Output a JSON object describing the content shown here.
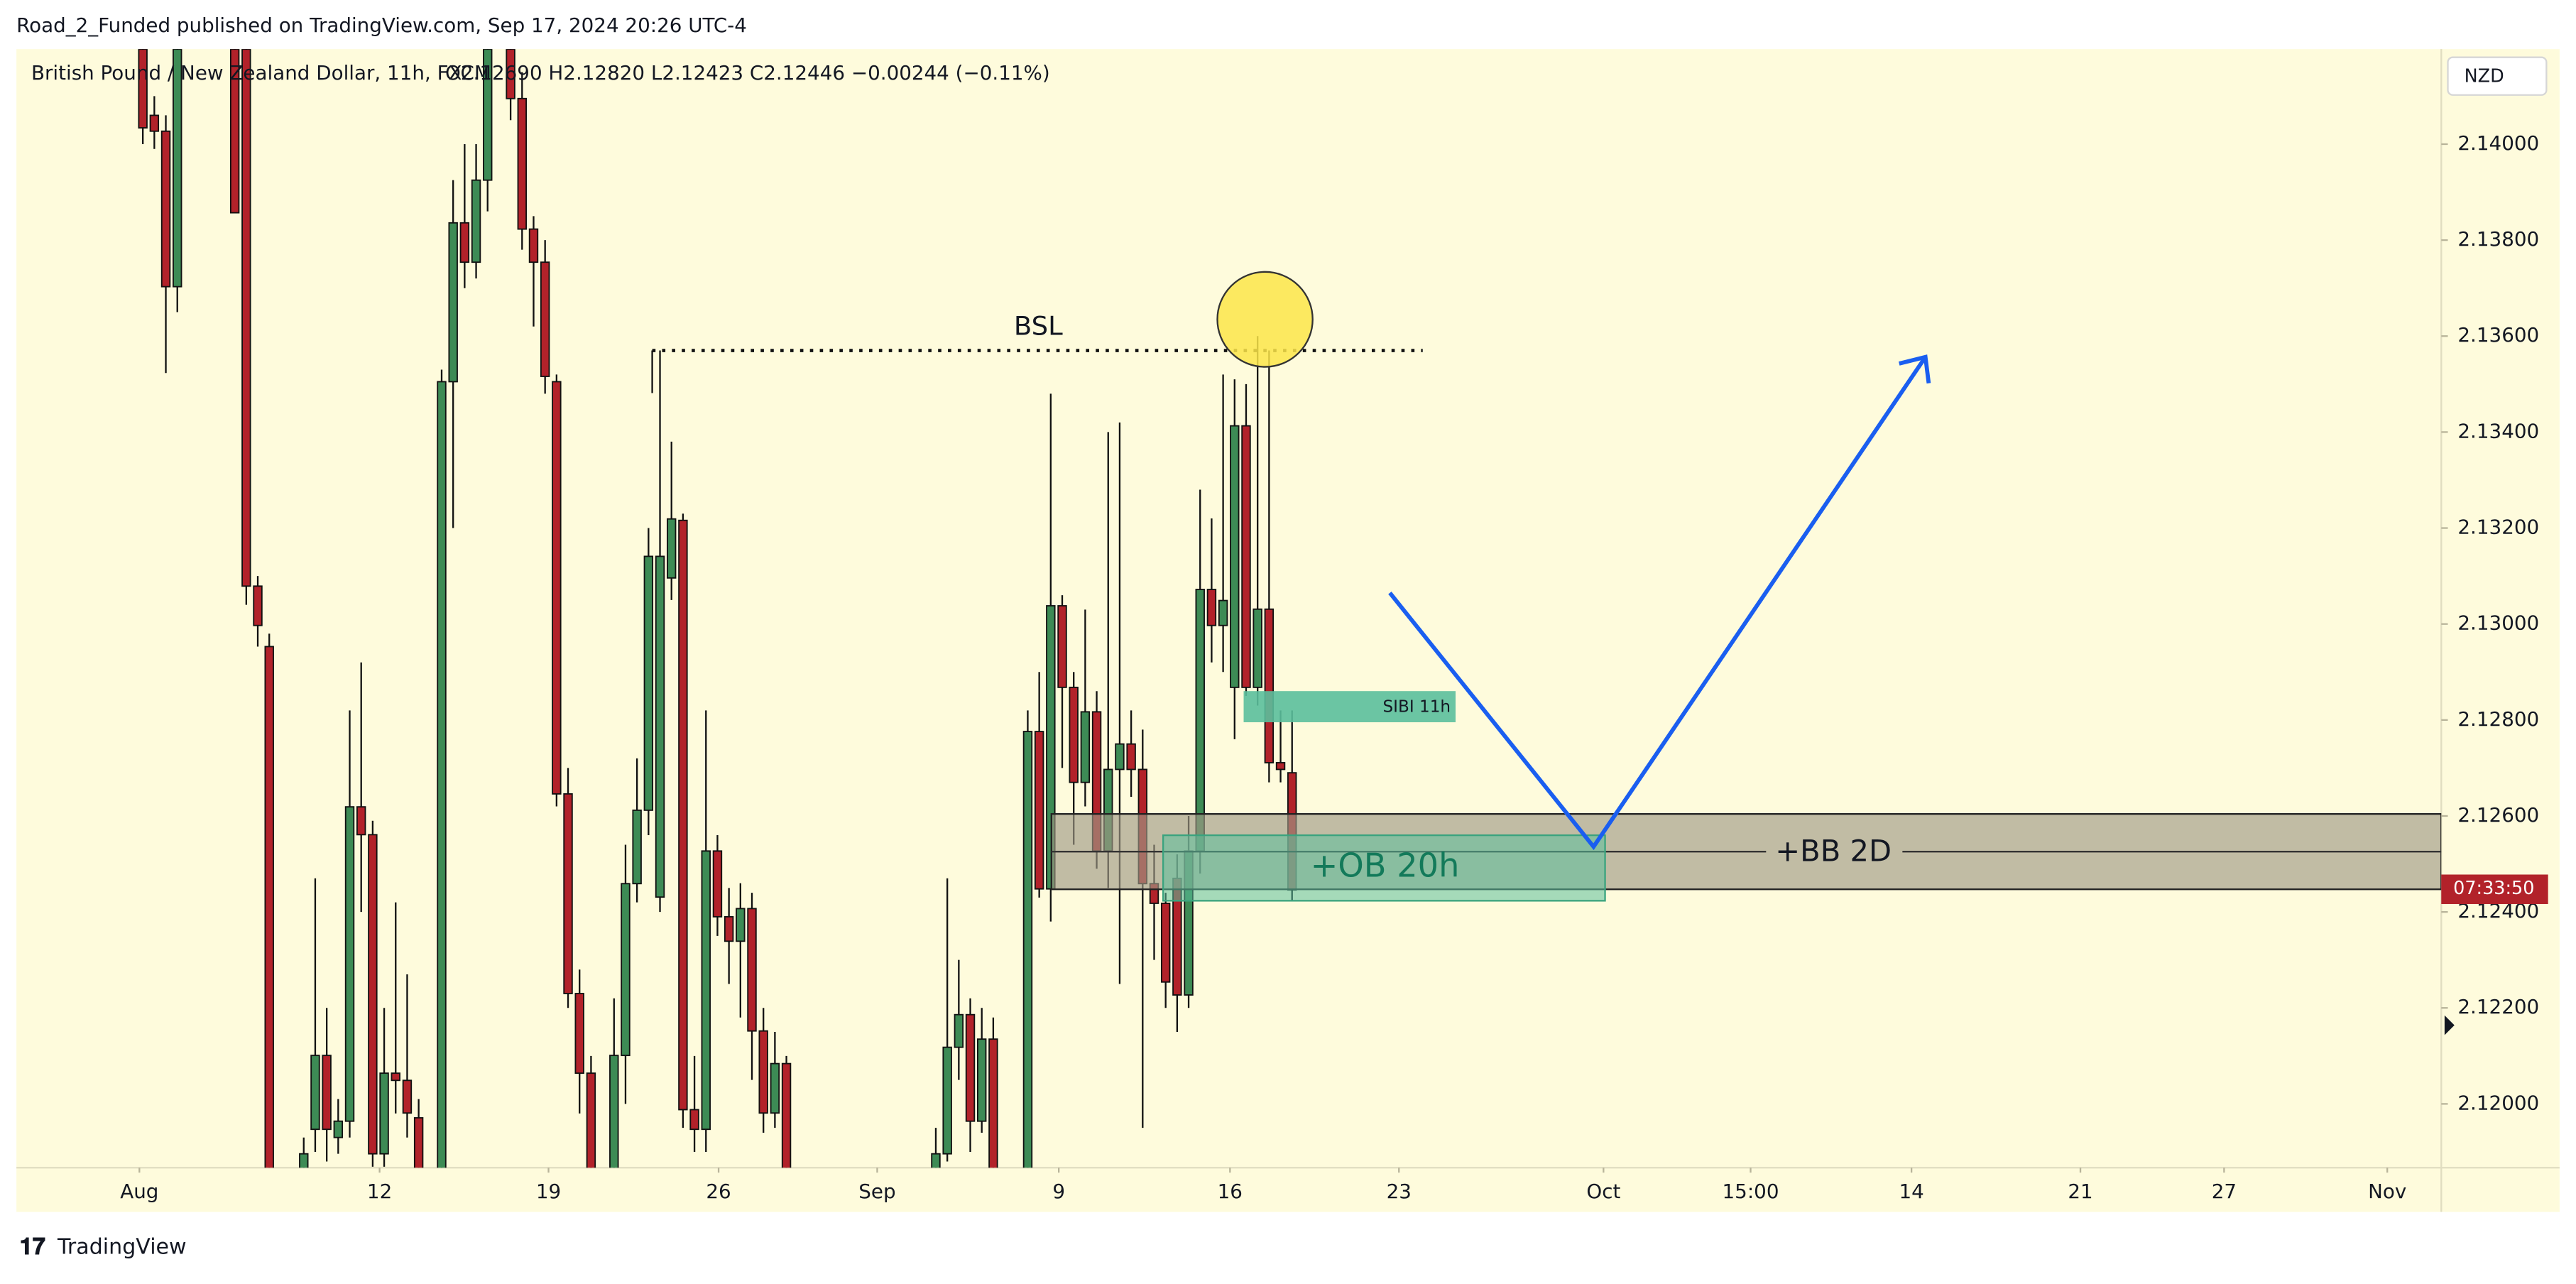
{
  "header": "Road_2_Funded published on TradingView.com, Sep 17, 2024 20:26 UTC-4",
  "footer": "TradingView",
  "chart_data": {
    "type": "candlestick",
    "title": "British Pound / New Zealand Dollar, 11h, FXCM",
    "ohlc_text": "O2.12690 H2.12820 L2.12423 C2.12446 −0.00244 (−0.11%)",
    "currency": "NZD",
    "countdown": "07:33:50",
    "annotations": {
      "bsl": "BSL",
      "sibi": "SIBI 11h",
      "ob": "+OB 20h",
      "bb": "+BB 2D"
    },
    "up_color": "#3d8b55",
    "down_color": "#b2222a",
    "grid": false,
    "xlim": [
      0,
      211
    ],
    "xticks": [
      {
        "value": 10.7,
        "label": "Aug"
      },
      {
        "value": 31.6,
        "label": "12"
      },
      {
        "value": 46.3,
        "label": "19"
      },
      {
        "value": 61.1,
        "label": "26"
      },
      {
        "value": 74.9,
        "label": "Sep"
      },
      {
        "value": 90.7,
        "label": "9"
      },
      {
        "value": 105.6,
        "label": "16"
      },
      {
        "value": 120.3,
        "label": "23"
      },
      {
        "value": 138.1,
        "label": "Oct"
      },
      {
        "value": 150.9,
        "label": "15:00"
      },
      {
        "value": 164.9,
        "label": "14"
      },
      {
        "value": 179.6,
        "label": "21"
      },
      {
        "value": 192.1,
        "label": "27"
      },
      {
        "value": 206.3,
        "label": "Nov"
      }
    ],
    "ylim": [
      2.11867,
      2.14198
    ],
    "yticks": [
      {
        "value": 2.12,
        "label": "2.12000"
      },
      {
        "value": 2.122,
        "label": "2.12200"
      },
      {
        "value": 2.124,
        "label": "2.12400"
      },
      {
        "value": 2.126,
        "label": "2.12600"
      },
      {
        "value": 2.128,
        "label": "2.12800"
      },
      {
        "value": 2.13,
        "label": "2.13000"
      },
      {
        "value": 2.132,
        "label": "2.13200"
      },
      {
        "value": 2.134,
        "label": "2.13400"
      },
      {
        "value": 2.136,
        "label": "2.13600"
      },
      {
        "value": 2.138,
        "label": "2.13800"
      },
      {
        "value": 2.14,
        "label": "2.14000"
      }
    ],
    "candles": [
      {
        "x": 11,
        "open": 2.14198,
        "high": 2.1425,
        "low": 2.14,
        "close": 2.14034
      },
      {
        "x": 12,
        "open": 2.1406,
        "high": 2.141,
        "low": 2.1399,
        "close": 2.14027
      },
      {
        "x": 13,
        "open": 2.14027,
        "high": 2.1406,
        "low": 2.13523,
        "close": 2.13703
      },
      {
        "x": 14,
        "open": 2.13703,
        "high": 2.1425,
        "low": 2.1365,
        "close": 2.14198
      },
      {
        "x": 19,
        "open": 2.14198,
        "high": 2.1425,
        "low": 2.13857,
        "close": 2.13857
      },
      {
        "x": 20,
        "open": 2.14198,
        "high": 2.1425,
        "low": 2.1304,
        "close": 2.13079
      },
      {
        "x": 21,
        "open": 2.13079,
        "high": 2.131,
        "low": 2.12953,
        "close": 2.12997
      },
      {
        "x": 22,
        "open": 2.12953,
        "high": 2.1298,
        "low": 2.1175,
        "close": 2.118
      },
      {
        "x": 25,
        "open": 2.118,
        "high": 2.1193,
        "low": 2.1175,
        "close": 2.11896
      },
      {
        "x": 26,
        "open": 2.11947,
        "high": 2.1247,
        "low": 2.119,
        "close": 2.12101
      },
      {
        "x": 27,
        "open": 2.12101,
        "high": 2.122,
        "low": 2.1188,
        "close": 2.11947
      },
      {
        "x": 28,
        "open": 2.1193,
        "high": 2.1201,
        "low": 2.11896,
        "close": 2.11964
      },
      {
        "x": 29,
        "open": 2.11964,
        "high": 2.1282,
        "low": 2.1193,
        "close": 2.12619
      },
      {
        "x": 30,
        "open": 2.12619,
        "high": 2.1292,
        "low": 2.124,
        "close": 2.12561
      },
      {
        "x": 31,
        "open": 2.12561,
        "high": 2.1259,
        "low": 2.11869,
        "close": 2.11896
      },
      {
        "x": 32,
        "open": 2.11896,
        "high": 2.122,
        "low": 2.11869,
        "close": 2.12064
      },
      {
        "x": 33,
        "open": 2.12064,
        "high": 2.1242,
        "low": 2.1198,
        "close": 2.12049
      },
      {
        "x": 34,
        "open": 2.12049,
        "high": 2.1227,
        "low": 2.1193,
        "close": 2.11981
      },
      {
        "x": 35,
        "open": 2.11971,
        "high": 2.1201,
        "low": 2.1175,
        "close": 2.118
      },
      {
        "x": 37,
        "open": 2.118,
        "high": 2.1353,
        "low": 2.1175,
        "close": 2.13505
      },
      {
        "x": 38,
        "open": 2.13505,
        "high": 2.13925,
        "low": 2.132,
        "close": 2.13836
      },
      {
        "x": 39,
        "open": 2.13836,
        "high": 2.14,
        "low": 2.137,
        "close": 2.13754
      },
      {
        "x": 40,
        "open": 2.13754,
        "high": 2.14,
        "low": 2.1372,
        "close": 2.13925
      },
      {
        "x": 41,
        "open": 2.13925,
        "high": 2.1425,
        "low": 2.1386,
        "close": 2.14198
      },
      {
        "x": 43,
        "open": 2.14198,
        "high": 2.1425,
        "low": 2.1405,
        "close": 2.14095
      },
      {
        "x": 44,
        "open": 2.14095,
        "high": 2.1415,
        "low": 2.1378,
        "close": 2.13823
      },
      {
        "x": 45,
        "open": 2.13823,
        "high": 2.1385,
        "low": 2.1362,
        "close": 2.13754
      },
      {
        "x": 46,
        "open": 2.13754,
        "high": 2.138,
        "low": 2.1348,
        "close": 2.13516
      },
      {
        "x": 47,
        "open": 2.13505,
        "high": 2.1352,
        "low": 2.1262,
        "close": 2.12646
      },
      {
        "x": 48,
        "open": 2.12646,
        "high": 2.127,
        "low": 2.122,
        "close": 2.1223
      },
      {
        "x": 49,
        "open": 2.1223,
        "high": 2.1228,
        "low": 2.1198,
        "close": 2.12064
      },
      {
        "x": 50,
        "open": 2.12064,
        "high": 2.121,
        "low": 2.1175,
        "close": 2.118
      },
      {
        "x": 52,
        "open": 2.118,
        "high": 2.1222,
        "low": 2.1175,
        "close": 2.12101
      },
      {
        "x": 53,
        "open": 2.12101,
        "high": 2.1254,
        "low": 2.12,
        "close": 2.12459
      },
      {
        "x": 54,
        "open": 2.12459,
        "high": 2.1272,
        "low": 2.1242,
        "close": 2.12612
      },
      {
        "x": 55,
        "open": 2.12612,
        "high": 2.132,
        "low": 2.1256,
        "close": 2.13141
      },
      {
        "x": 56,
        "open": 2.12431,
        "high": 2.1357,
        "low": 2.124,
        "close": 2.13141
      },
      {
        "x": 57,
        "open": 2.13096,
        "high": 2.1338,
        "low": 2.1305,
        "close": 2.13219
      },
      {
        "x": 58,
        "open": 2.13216,
        "high": 2.1323,
        "low": 2.1195,
        "close": 2.11988
      },
      {
        "x": 59,
        "open": 2.11988,
        "high": 2.121,
        "low": 2.119,
        "close": 2.11947
      },
      {
        "x": 60,
        "open": 2.11947,
        "high": 2.1282,
        "low": 2.119,
        "close": 2.12527
      },
      {
        "x": 61,
        "open": 2.12527,
        "high": 2.1256,
        "low": 2.1235,
        "close": 2.1239
      },
      {
        "x": 62,
        "open": 2.1239,
        "high": 2.1245,
        "low": 2.1225,
        "close": 2.12339
      },
      {
        "x": 63,
        "open": 2.12339,
        "high": 2.1246,
        "low": 2.1218,
        "close": 2.12407
      },
      {
        "x": 64,
        "open": 2.12407,
        "high": 2.1244,
        "low": 2.1205,
        "close": 2.12152
      },
      {
        "x": 65,
        "open": 2.12152,
        "high": 2.122,
        "low": 2.1194,
        "close": 2.11981
      },
      {
        "x": 66,
        "open": 2.11981,
        "high": 2.1215,
        "low": 2.1195,
        "close": 2.12084
      },
      {
        "x": 67,
        "open": 2.12084,
        "high": 2.121,
        "low": 2.1175,
        "close": 2.118
      },
      {
        "x": 80,
        "open": 2.118,
        "high": 2.1195,
        "low": 2.1175,
        "close": 2.11896
      },
      {
        "x": 81,
        "open": 2.11896,
        "high": 2.1247,
        "low": 2.1188,
        "close": 2.12118
      },
      {
        "x": 82,
        "open": 2.12118,
        "high": 2.123,
        "low": 2.1205,
        "close": 2.12186
      },
      {
        "x": 83,
        "open": 2.12186,
        "high": 2.1222,
        "low": 2.119,
        "close": 2.11964
      },
      {
        "x": 84,
        "open": 2.11964,
        "high": 2.122,
        "low": 2.1194,
        "close": 2.12135
      },
      {
        "x": 85,
        "open": 2.12135,
        "high": 2.1218,
        "low": 2.1175,
        "close": 2.118
      },
      {
        "x": 88,
        "open": 2.118,
        "high": 2.1282,
        "low": 2.1175,
        "close": 2.12776
      },
      {
        "x": 89,
        "open": 2.12776,
        "high": 2.129,
        "low": 2.1243,
        "close": 2.12448
      },
      {
        "x": 90,
        "open": 2.12448,
        "high": 2.1348,
        "low": 2.1238,
        "close": 2.13038
      },
      {
        "x": 91,
        "open": 2.13038,
        "high": 2.1306,
        "low": 2.127,
        "close": 2.12868
      },
      {
        "x": 92,
        "open": 2.12868,
        "high": 2.129,
        "low": 2.1254,
        "close": 2.1267
      },
      {
        "x": 93,
        "open": 2.1267,
        "high": 2.1303,
        "low": 2.1262,
        "close": 2.12817
      },
      {
        "x": 94,
        "open": 2.12817,
        "high": 2.1286,
        "low": 2.1249,
        "close": 2.12527
      },
      {
        "x": 95,
        "open": 2.12527,
        "high": 2.134,
        "low": 2.1245,
        "close": 2.12697
      },
      {
        "x": 96,
        "open": 2.12697,
        "high": 2.1342,
        "low": 2.1225,
        "close": 2.1275
      },
      {
        "x": 97,
        "open": 2.1275,
        "high": 2.1282,
        "low": 2.1264,
        "close": 2.12697
      },
      {
        "x": 98,
        "open": 2.12697,
        "high": 2.1278,
        "low": 2.1195,
        "close": 2.12459
      },
      {
        "x": 99,
        "open": 2.12459,
        "high": 2.1254,
        "low": 2.123,
        "close": 2.12418
      },
      {
        "x": 100,
        "open": 2.12418,
        "high": 2.1244,
        "low": 2.122,
        "close": 2.12254
      },
      {
        "x": 101,
        "open": 2.1247,
        "high": 2.1252,
        "low": 2.1215,
        "close": 2.12227
      },
      {
        "x": 102,
        "open": 2.12227,
        "high": 2.126,
        "low": 2.122,
        "close": 2.12527
      },
      {
        "x": 103,
        "open": 2.12527,
        "high": 2.1328,
        "low": 2.1248,
        "close": 2.13072
      },
      {
        "x": 104,
        "open": 2.13072,
        "high": 2.1322,
        "low": 2.1292,
        "close": 2.12997
      },
      {
        "x": 105,
        "open": 2.12997,
        "high": 2.1352,
        "low": 2.129,
        "close": 2.13049
      },
      {
        "x": 106,
        "open": 2.12868,
        "high": 2.1351,
        "low": 2.1276,
        "close": 2.13413
      },
      {
        "x": 107,
        "open": 2.13413,
        "high": 2.135,
        "low": 2.1285,
        "close": 2.12868
      },
      {
        "x": 108,
        "open": 2.12868,
        "high": 2.136,
        "low": 2.1283,
        "close": 2.13031
      },
      {
        "x": 109,
        "open": 2.13031,
        "high": 2.1357,
        "low": 2.1267,
        "close": 2.12711
      },
      {
        "x": 110,
        "open": 2.12711,
        "high": 2.1282,
        "low": 2.1267,
        "close": 2.12697
      },
      {
        "x": 111,
        "open": 2.1269,
        "high": 2.1282,
        "low": 2.12423,
        "close": 2.12446
      }
    ]
  }
}
